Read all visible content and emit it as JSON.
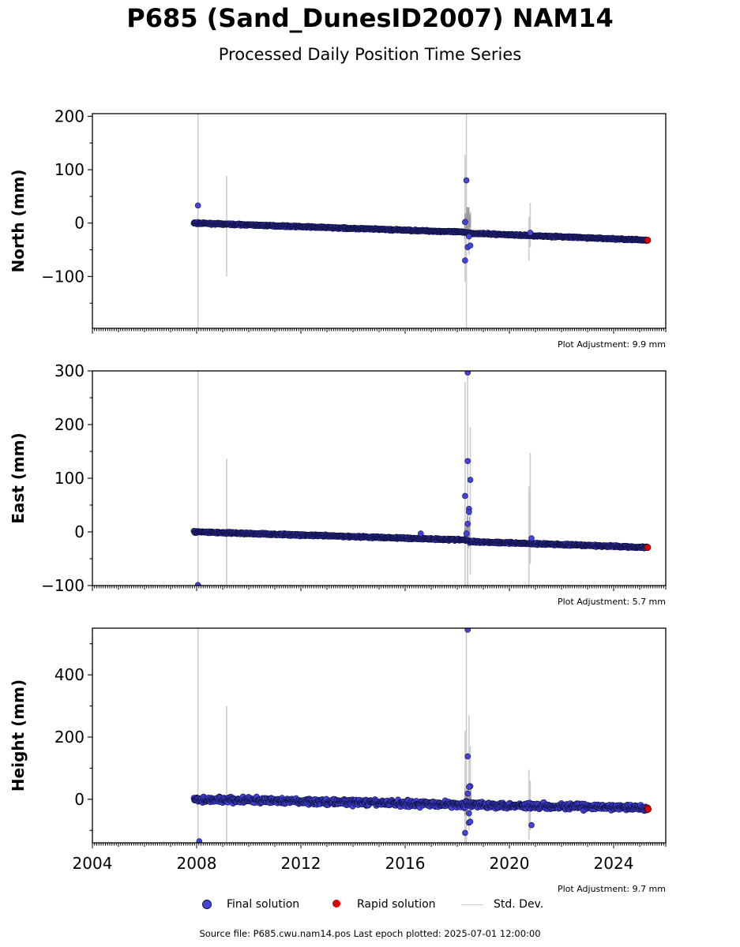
{
  "title": "P685 (Sand_DunesID2007) NAM14",
  "subtitle": "Processed Daily Position Time Series",
  "source_line": "Source file: P685.cwu.nam14.pos  Last epoch plotted: 2025-07-01 12:00:00",
  "legend": {
    "final": "Final solution",
    "rapid": "Rapid solution",
    "stddev": "Std. Dev."
  },
  "colors": {
    "final": "#4444dd",
    "final_edge": "#111144",
    "rapid": "#dd0000",
    "stddev": "#c0c0c0"
  },
  "chart_data": [
    {
      "type": "scatter",
      "panel": "north",
      "ylabel": "North (mm)",
      "xlim": [
        2004,
        2026
      ],
      "ylim": [
        -197,
        205
      ],
      "yticks": [
        -100,
        0,
        100,
        200
      ],
      "adjustment": "Plot Adjustment: 9.9 mm",
      "trend": [
        [
          2007.9,
          0
        ],
        [
          2018.3,
          -17
        ],
        [
          2018.5,
          -19
        ],
        [
          2025.3,
          -32
        ]
      ],
      "noise": 1.2,
      "outliers": [
        [
          2008.05,
          33
        ],
        [
          2018.35,
          80
        ],
        [
          2018.3,
          -70
        ],
        [
          2018.4,
          -45
        ],
        [
          2018.5,
          -42
        ],
        [
          2018.3,
          2
        ],
        [
          2018.45,
          -25
        ],
        [
          2020.8,
          -18
        ]
      ],
      "rapid": [
        [
          2025.3,
          -32
        ]
      ],
      "stddev": [
        [
          2008.05,
          -197,
          205
        ],
        [
          2009.15,
          -100,
          88
        ],
        [
          2018.35,
          -197,
          205
        ],
        [
          2018.3,
          -110,
          128
        ],
        [
          2018.45,
          -60,
          30
        ],
        [
          2020.75,
          -70,
          12
        ],
        [
          2020.8,
          -45,
          38
        ]
      ],
      "xticks": []
    },
    {
      "type": "scatter",
      "panel": "east",
      "ylabel": "East (mm)",
      "xlim": [
        2004,
        2026
      ],
      "ylim": [
        -100,
        300
      ],
      "yticks": [
        -100,
        0,
        100,
        200,
        300
      ],
      "adjustment": "Plot Adjustment: 5.7 mm",
      "trend": [
        [
          2007.9,
          0
        ],
        [
          2018.3,
          -15
        ],
        [
          2018.5,
          -18
        ],
        [
          2025.3,
          -29
        ]
      ],
      "noise": 1.5,
      "outliers": [
        [
          2008.05,
          -99
        ],
        [
          2018.4,
          297
        ],
        [
          2018.4,
          132
        ],
        [
          2018.5,
          97
        ],
        [
          2018.3,
          67
        ],
        [
          2018.45,
          43
        ],
        [
          2018.45,
          37
        ],
        [
          2018.4,
          15
        ],
        [
          2018.35,
          -3
        ],
        [
          2016.6,
          -3
        ],
        [
          2020.85,
          -12
        ]
      ],
      "rapid": [
        [
          2025.3,
          -29
        ]
      ],
      "stddev": [
        [
          2008.05,
          -100,
          300
        ],
        [
          2009.15,
          -100,
          136
        ],
        [
          2018.3,
          -100,
          280
        ],
        [
          2018.4,
          -100,
          300
        ],
        [
          2018.5,
          -80,
          195
        ],
        [
          2020.75,
          -100,
          85
        ],
        [
          2020.8,
          -60,
          147
        ]
      ],
      "xticks": []
    },
    {
      "type": "scatter",
      "panel": "height",
      "ylabel": "Height (mm)",
      "xlim": [
        2004,
        2026
      ],
      "ylim": [
        -140,
        550
      ],
      "yticks": [
        0,
        200,
        400
      ],
      "adjustment": "Plot Adjustment: 9.7 mm",
      "trend": [
        [
          2007.9,
          0
        ],
        [
          2025.3,
          -28
        ]
      ],
      "noise": 9,
      "outliers": [
        [
          2008.1,
          -135
        ],
        [
          2018.4,
          545
        ],
        [
          2018.4,
          138
        ],
        [
          2018.5,
          42
        ],
        [
          2018.45,
          40
        ],
        [
          2018.3,
          -108
        ],
        [
          2018.45,
          -75
        ],
        [
          2018.5,
          -72
        ],
        [
          2018.4,
          18
        ],
        [
          2018.45,
          -45
        ],
        [
          2020.85,
          -83
        ]
      ],
      "rapid": [
        [
          2025.3,
          -28
        ],
        [
          2025.32,
          -32
        ]
      ],
      "stddev": [
        [
          2008.05,
          -140,
          550
        ],
        [
          2009.15,
          -140,
          300
        ],
        [
          2018.3,
          -140,
          220
        ],
        [
          2018.35,
          -140,
          550
        ],
        [
          2018.45,
          -100,
          270
        ],
        [
          2018.5,
          -80,
          170
        ],
        [
          2020.75,
          -130,
          95
        ],
        [
          2020.8,
          -100,
          60
        ]
      ],
      "xticks": [
        "2004",
        "2008",
        "2012",
        "2016",
        "2020",
        "2024"
      ]
    }
  ]
}
